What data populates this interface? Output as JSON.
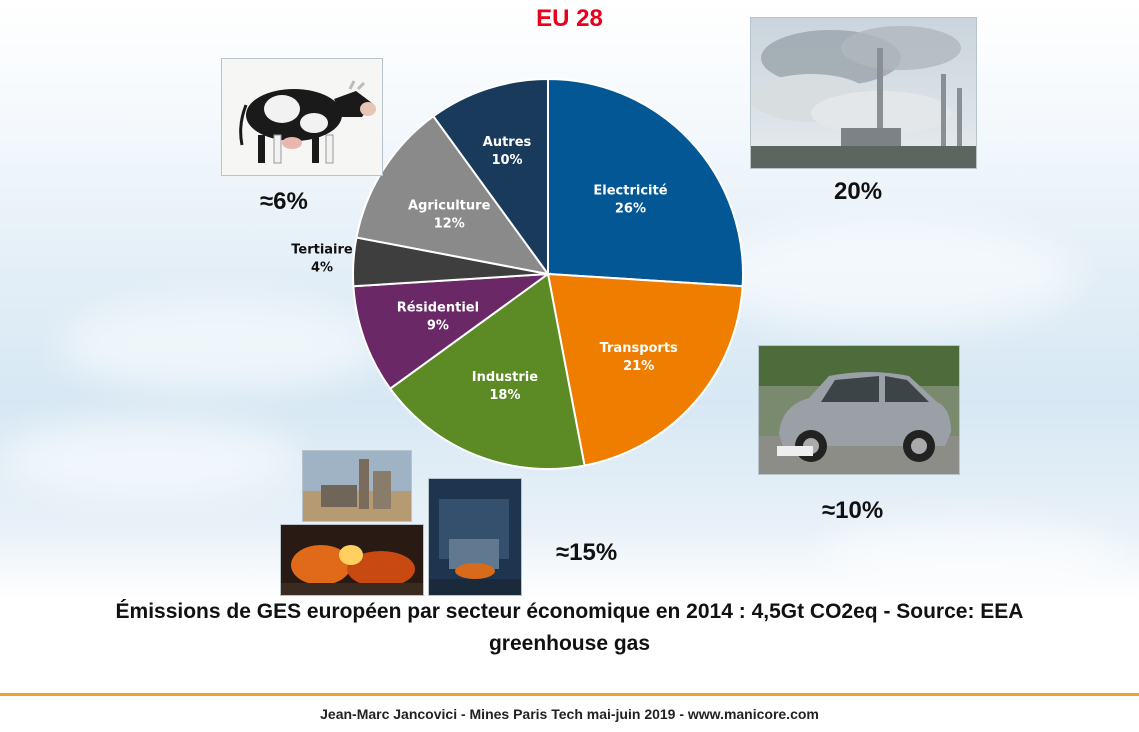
{
  "chart_data": {
    "type": "pie",
    "title": "EU 28",
    "title_color": "#e8001c",
    "slices": [
      {
        "label": "Electricité",
        "value": 26,
        "display": "26%",
        "color": "#035794",
        "text_color": "#ffffff"
      },
      {
        "label": "Transports",
        "value": 21,
        "display": "21%",
        "color": "#ef7d00",
        "text_color": "#ffffff"
      },
      {
        "label": "Industrie",
        "value": 18,
        "display": "18%",
        "color": "#5c8a24",
        "text_color": "#ffffff"
      },
      {
        "label": "Résidentiel",
        "value": 9,
        "display": "9%",
        "color": "#6a2866",
        "text_color": "#ffffff"
      },
      {
        "label": "Tertiaire",
        "value": 4,
        "display": "4%",
        "color": "#3e3e3e",
        "text_color": "#111111"
      },
      {
        "label": "Agriculture",
        "value": 12,
        "display": "12%",
        "color": "#8a8a8a",
        "text_color": "#ffffff"
      },
      {
        "label": "Autres",
        "value": 10,
        "display": "10%",
        "color": "#1a3a5c",
        "text_color": "#ffffff"
      }
    ]
  },
  "annotations": {
    "agriculture": "≈6%",
    "electricite": "20%",
    "transports": "≈10%",
    "industrie": "≈15%"
  },
  "images": {
    "cow": "cow-photo",
    "power_plant": "power-plant-photo",
    "car": "car-photo",
    "industry": [
      "cement-plant-photo",
      "steel-furnace-photo",
      "steel-mill-photo"
    ]
  },
  "caption": {
    "line1": "Émissions de GES européen par secteur économique en 2014 : 4,5Gt CO2eq - Source: EEA",
    "line2": "greenhouse gas"
  },
  "footer": "Jean-Marc Jancovici - Mines Paris Tech mai-juin 2019 - www.manicore.com"
}
